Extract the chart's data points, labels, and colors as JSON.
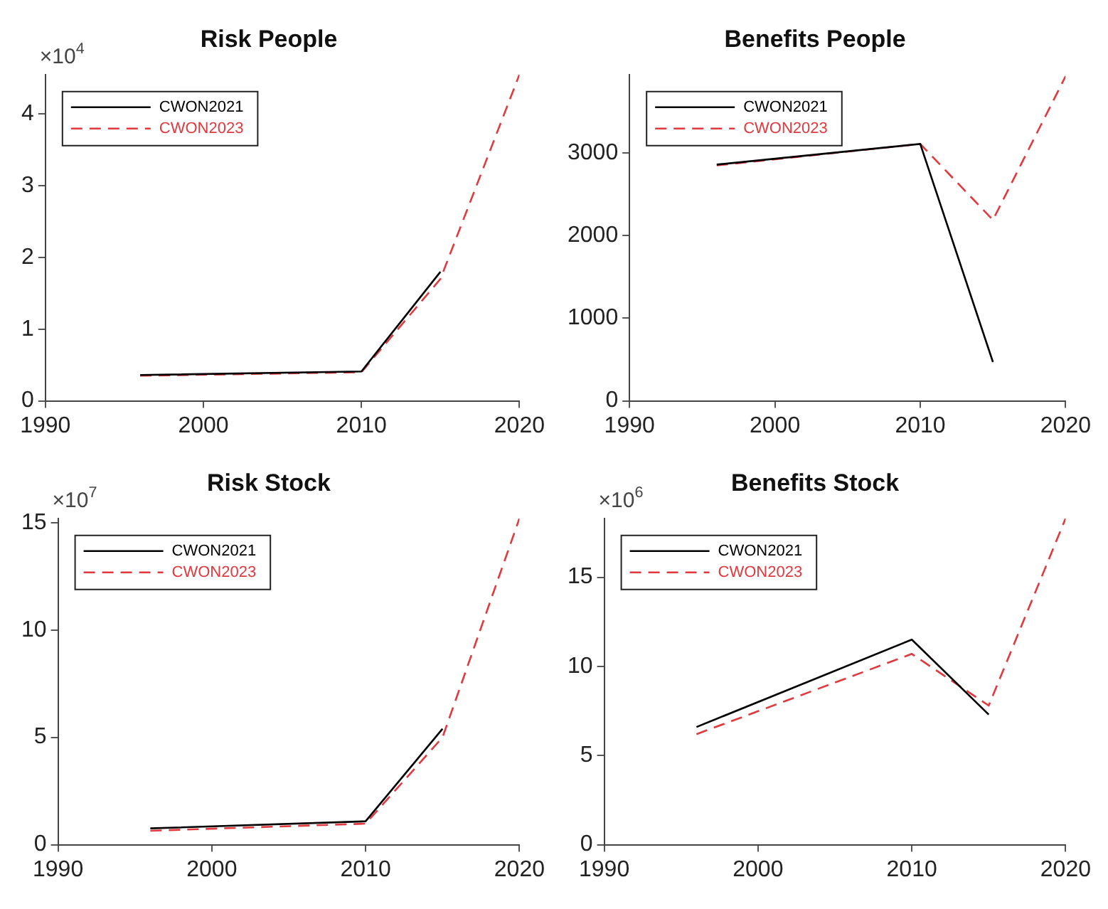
{
  "chart_data": [
    {
      "type": "line",
      "title": "Risk People",
      "x": [
        1996,
        2010,
        2015,
        2020
      ],
      "xlim": [
        1990,
        2020
      ],
      "xticks": [
        1990,
        2000,
        2010,
        2020
      ],
      "ylim": [
        0,
        4.55
      ],
      "yticks": [
        0,
        1,
        2,
        3,
        4
      ],
      "annotations": [
        "×10$^{4}$"
      ],
      "legend": "top left",
      "series": [
        {
          "name": "CWON2021",
          "color": "#000000",
          "line_style": "solid",
          "values": [
            0.36,
            0.41,
            1.8,
            null
          ]
        },
        {
          "name": "CWON2023",
          "color": "#e0393e",
          "line_style": "dashed",
          "values": [
            0.35,
            0.4,
            1.7,
            4.55
          ]
        }
      ]
    },
    {
      "type": "line",
      "title": "Benefits People",
      "x": [
        1996,
        2010,
        2015,
        2020
      ],
      "xlim": [
        1990,
        2020
      ],
      "xticks": [
        1990,
        2000,
        2010,
        2020
      ],
      "ylim": [
        0,
        3950
      ],
      "yticks": [
        0,
        1000,
        2000,
        3000
      ],
      "legend": "top left",
      "series": [
        {
          "name": "CWON2021",
          "color": "#000000",
          "line_style": "solid",
          "values": [
            2860,
            3110,
            470,
            null
          ]
        },
        {
          "name": "CWON2023",
          "color": "#e0393e",
          "line_style": "dashed",
          "values": [
            2850,
            3110,
            2190,
            3930
          ]
        }
      ]
    },
    {
      "type": "line",
      "title": "Risk Stock",
      "x": [
        1996,
        2010,
        2015,
        2020
      ],
      "xlim": [
        1990,
        2020
      ],
      "xticks": [
        1990,
        2000,
        2010,
        2020
      ],
      "ylim": [
        0,
        15.2
      ],
      "yticks": [
        0,
        5,
        10,
        15
      ],
      "annotations": [
        "×10$^{7}$"
      ],
      "legend": "top left",
      "series": [
        {
          "name": "CWON2021",
          "color": "#000000",
          "line_style": "solid",
          "values": [
            0.76,
            1.09,
            5.4,
            null
          ]
        },
        {
          "name": "CWON2023",
          "color": "#e0393e",
          "line_style": "dashed",
          "values": [
            0.65,
            0.98,
            5.0,
            15.2
          ]
        }
      ]
    },
    {
      "type": "line",
      "title": "Benefits Stock",
      "x": [
        1996,
        2010,
        2015,
        2020
      ],
      "xlim": [
        1990,
        2020
      ],
      "xticks": [
        1990,
        2000,
        2010,
        2020
      ],
      "ylim": [
        0,
        18.3
      ],
      "yticks": [
        0,
        5,
        10,
        15
      ],
      "annotations": [
        "×10$^{6}$"
      ],
      "legend": "top left",
      "series": [
        {
          "name": "CWON2021",
          "color": "#000000",
          "line_style": "solid",
          "values": [
            6.6,
            11.5,
            7.3,
            null
          ]
        },
        {
          "name": "CWON2023",
          "color": "#e0393e",
          "line_style": "dashed",
          "values": [
            6.2,
            10.7,
            7.8,
            18.3
          ]
        }
      ]
    }
  ]
}
